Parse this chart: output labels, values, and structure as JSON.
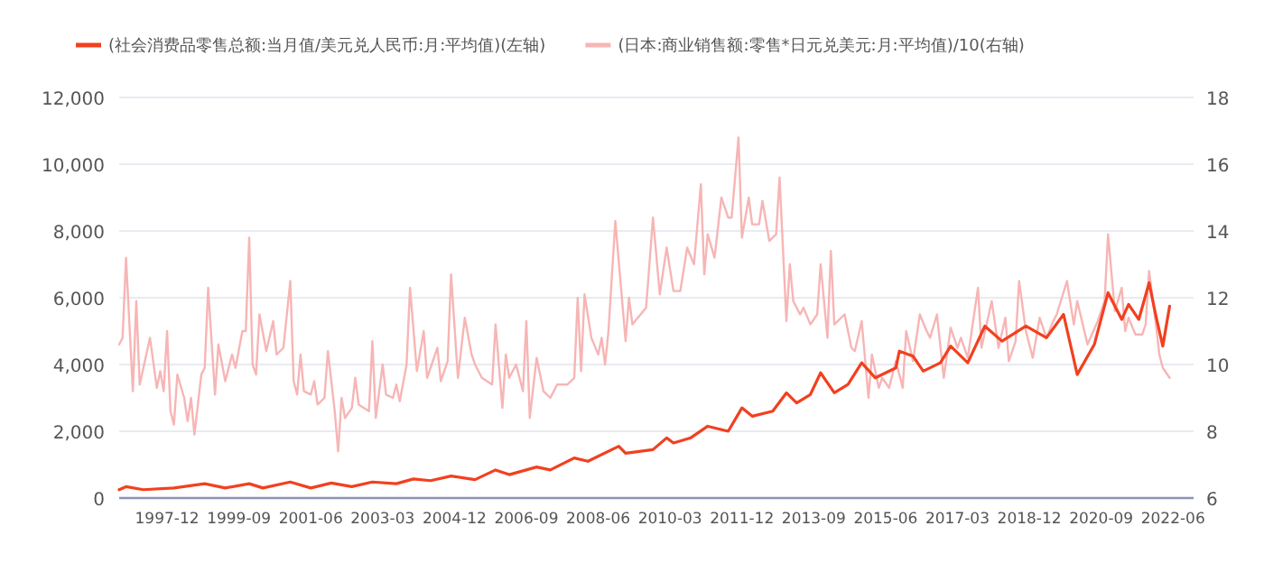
{
  "chart_data": {
    "type": "line",
    "legend": "top",
    "grid": "y",
    "xlim": [
      "1996-10",
      "2022-12"
    ],
    "xticks": [
      "1997-12",
      "1999-09",
      "2001-06",
      "2003-03",
      "2004-12",
      "2006-09",
      "2008-06",
      "2010-03",
      "2011-12",
      "2013-09",
      "2015-06",
      "2017-03",
      "2018-12",
      "2020-09",
      "2022-06"
    ],
    "ylim": [
      0,
      12000
    ],
    "yticks": [
      0,
      {
        "value": 2000,
        "label": "2,000"
      },
      {
        "value": 4000,
        "label": "4,000"
      },
      {
        "value": 6000,
        "label": "6,000"
      },
      {
        "value": 8000,
        "label": "8,000"
      },
      {
        "value": 10000,
        "label": "10,000"
      },
      {
        "value": 12000,
        "label": "12,000"
      }
    ],
    "y2lim": [
      6,
      18
    ],
    "y2ticks": [
      6,
      8,
      10,
      12,
      14,
      16,
      18
    ],
    "series": [
      {
        "name": "(社会消费品零售总额:当月值/美元兑人民币:月:平均值)(左轴)",
        "color": "#f2401f",
        "x": [
          "1996-10",
          "1996-12",
          "1997-05",
          "1998-02",
          "1998-11",
          "1999-05",
          "1999-12",
          "2000-04",
          "2000-12",
          "2001-06",
          "2001-12",
          "2002-06",
          "2002-12",
          "2003-07",
          "2003-12",
          "2004-05",
          "2004-11",
          "2005-06",
          "2005-12",
          "2006-04",
          "2006-12",
          "2007-04",
          "2007-11",
          "2008-03",
          "2008-12",
          "2009-02",
          "2009-10",
          "2010-02",
          "2010-04",
          "2010-09",
          "2011-02",
          "2011-08",
          "2011-12",
          "2012-03",
          "2012-09",
          "2013-01",
          "2013-04",
          "2013-08",
          "2013-11",
          "2014-03",
          "2014-07",
          "2014-11",
          "2015-03",
          "2015-09",
          "2015-10",
          "2016-02",
          "2016-05",
          "2016-10",
          "2017-01",
          "2017-06",
          "2017-11",
          "2018-04",
          "2018-11",
          "2019-05",
          "2019-10",
          "2020-02",
          "2020-07",
          "2020-11",
          "2021-03",
          "2021-05",
          "2021-08",
          "2021-11",
          "2022-01",
          "2022-03",
          "2022-05"
        ],
        "values": [
          250,
          340,
          250,
          300,
          430,
          300,
          430,
          300,
          480,
          300,
          450,
          340,
          480,
          430,
          570,
          520,
          660,
          550,
          840,
          700,
          930,
          840,
          1200,
          1100,
          1550,
          1340,
          1450,
          1800,
          1650,
          1800,
          2150,
          2000,
          2700,
          2450,
          2600,
          3150,
          2850,
          3100,
          3750,
          3150,
          3400,
          4050,
          3600,
          3900,
          4400,
          4250,
          3800,
          4050,
          4550,
          4050,
          5150,
          4700,
          5150,
          4800,
          5500,
          3700,
          4600,
          6150,
          5350,
          5800,
          5350,
          6450,
          5450,
          4550,
          5750
        ]
      },
      {
        "name": "(日本:商业销售额:零售*日元兑美元:月:平均值)/10(右轴)",
        "color": "#f7b5b5",
        "axis": "y2",
        "x": [
          "1996-10",
          "1996-11",
          "1996-12",
          "1997-02",
          "1997-03",
          "1997-04",
          "1997-07",
          "1997-09",
          "1997-10",
          "1997-11",
          "1997-12",
          "1998-01",
          "1998-02",
          "1998-03",
          "1998-05",
          "1998-06",
          "1998-07",
          "1998-08",
          "1998-10",
          "1998-11",
          "1998-12",
          "1999-02",
          "1999-03",
          "1999-05",
          "1999-07",
          "1999-08",
          "1999-10",
          "1999-11",
          "1999-12",
          "2000-01",
          "2000-02",
          "2000-03",
          "2000-05",
          "2000-07",
          "2000-08",
          "2000-10",
          "2000-12",
          "2001-01",
          "2001-02",
          "2001-03",
          "2001-04",
          "2001-06",
          "2001-07",
          "2001-08",
          "2001-10",
          "2001-11",
          "2002-01",
          "2002-02",
          "2002-03",
          "2002-04",
          "2002-06",
          "2002-07",
          "2002-08",
          "2002-11",
          "2002-12",
          "2003-01",
          "2003-03",
          "2003-04",
          "2003-06",
          "2003-07",
          "2003-08",
          "2003-10",
          "2003-11",
          "2004-01",
          "2004-03",
          "2004-04",
          "2004-07",
          "2004-08",
          "2004-10",
          "2004-11",
          "2005-01",
          "2005-03",
          "2005-05",
          "2005-06",
          "2005-08",
          "2005-11",
          "2005-12",
          "2006-02",
          "2006-03",
          "2006-04",
          "2006-06",
          "2006-08",
          "2006-09",
          "2006-10",
          "2006-12",
          "2007-02",
          "2007-04",
          "2007-06",
          "2007-09",
          "2007-11",
          "2007-12",
          "2008-01",
          "2008-02",
          "2008-04",
          "2008-06",
          "2008-07",
          "2008-08",
          "2008-09",
          "2008-11",
          "2009-02",
          "2009-03",
          "2009-04",
          "2009-08",
          "2009-10",
          "2009-12",
          "2010-02",
          "2010-04",
          "2010-06",
          "2010-08",
          "2010-10",
          "2010-12",
          "2011-01",
          "2011-02",
          "2011-04",
          "2011-06",
          "2011-08",
          "2011-09",
          "2011-11",
          "2011-12",
          "2012-02",
          "2012-03",
          "2012-05",
          "2012-06",
          "2012-08",
          "2012-10",
          "2012-11",
          "2013-01",
          "2013-02",
          "2013-03",
          "2013-05",
          "2013-06",
          "2013-08",
          "2013-10",
          "2013-11",
          "2014-01",
          "2014-02",
          "2014-03",
          "2014-06",
          "2014-08",
          "2014-09",
          "2014-11",
          "2015-01",
          "2015-02",
          "2015-04",
          "2015-05",
          "2015-07",
          "2015-09",
          "2015-11",
          "2015-12",
          "2016-02",
          "2016-04",
          "2016-06",
          "2016-07",
          "2016-09",
          "2016-11",
          "2017-01",
          "2017-03",
          "2017-04",
          "2017-06",
          "2017-09",
          "2017-10",
          "2018-01",
          "2018-03",
          "2018-05",
          "2018-06",
          "2018-08",
          "2018-09",
          "2018-11",
          "2019-01",
          "2019-03",
          "2019-05",
          "2019-07",
          "2019-08",
          "2019-11",
          "2020-01",
          "2020-02",
          "2020-05",
          "2020-08",
          "2020-10",
          "2020-11",
          "2021-01",
          "2021-03",
          "2021-04",
          "2021-05",
          "2021-07",
          "2021-09",
          "2021-10",
          "2021-11",
          "2022-01",
          "2022-02",
          "2022-03",
          "2022-05"
        ],
        "values": [
          10.6,
          10.8,
          13.2,
          9.2,
          11.9,
          9.4,
          10.8,
          9.3,
          9.8,
          9.2,
          11.0,
          8.6,
          8.2,
          9.7,
          9.0,
          8.3,
          9.0,
          7.9,
          9.7,
          9.9,
          12.3,
          9.1,
          10.6,
          9.5,
          10.3,
          9.9,
          11.0,
          11.0,
          13.8,
          10.0,
          9.7,
          11.5,
          10.4,
          11.3,
          10.3,
          10.5,
          12.5,
          9.5,
          9.1,
          10.3,
          9.2,
          9.1,
          9.5,
          8.8,
          9.0,
          10.4,
          8.6,
          7.4,
          9.0,
          8.4,
          8.7,
          9.6,
          8.8,
          8.6,
          10.7,
          8.4,
          10.0,
          9.1,
          9.0,
          9.4,
          8.9,
          10.0,
          12.3,
          9.8,
          11.0,
          9.6,
          10.5,
          9.5,
          10.1,
          12.7,
          9.6,
          11.4,
          10.3,
          10.0,
          9.6,
          9.4,
          11.2,
          8.7,
          10.3,
          9.6,
          10.0,
          9.2,
          11.3,
          8.4,
          10.2,
          9.2,
          9.0,
          9.4,
          9.4,
          9.6,
          12.0,
          9.8,
          12.1,
          10.8,
          10.3,
          10.8,
          10.0,
          11.0,
          14.3,
          10.7,
          12.0,
          11.2,
          11.7,
          14.4,
          12.1,
          13.5,
          12.2,
          12.2,
          13.5,
          13.0,
          15.4,
          12.7,
          13.9,
          13.2,
          15.0,
          14.4,
          14.4,
          16.8,
          13.8,
          15.0,
          14.2,
          14.2,
          14.9,
          13.7,
          13.9,
          15.6,
          11.3,
          13.0,
          11.9,
          11.5,
          11.7,
          11.2,
          11.5,
          13.0,
          10.8,
          13.4,
          11.2,
          11.5,
          10.5,
          10.4,
          11.3,
          9.0,
          10.3,
          9.3,
          9.6,
          9.3,
          10.1,
          9.3,
          11.0,
          10.1,
          11.5,
          11.0,
          10.8,
          11.5,
          9.6,
          11.1,
          10.5,
          10.8,
          10.2,
          12.3,
          10.5,
          11.9,
          10.5,
          11.4,
          10.1,
          10.7,
          12.5,
          11.0,
          10.2,
          11.4,
          10.8,
          11.3,
          11.5,
          12.5,
          11.2,
          11.9,
          10.6,
          11.3,
          11.9,
          13.9,
          11.6,
          12.3,
          11.0,
          11.4,
          10.9,
          10.9,
          11.2,
          12.8,
          11.2,
          10.3,
          9.9,
          9.6
        ]
      }
    ]
  }
}
